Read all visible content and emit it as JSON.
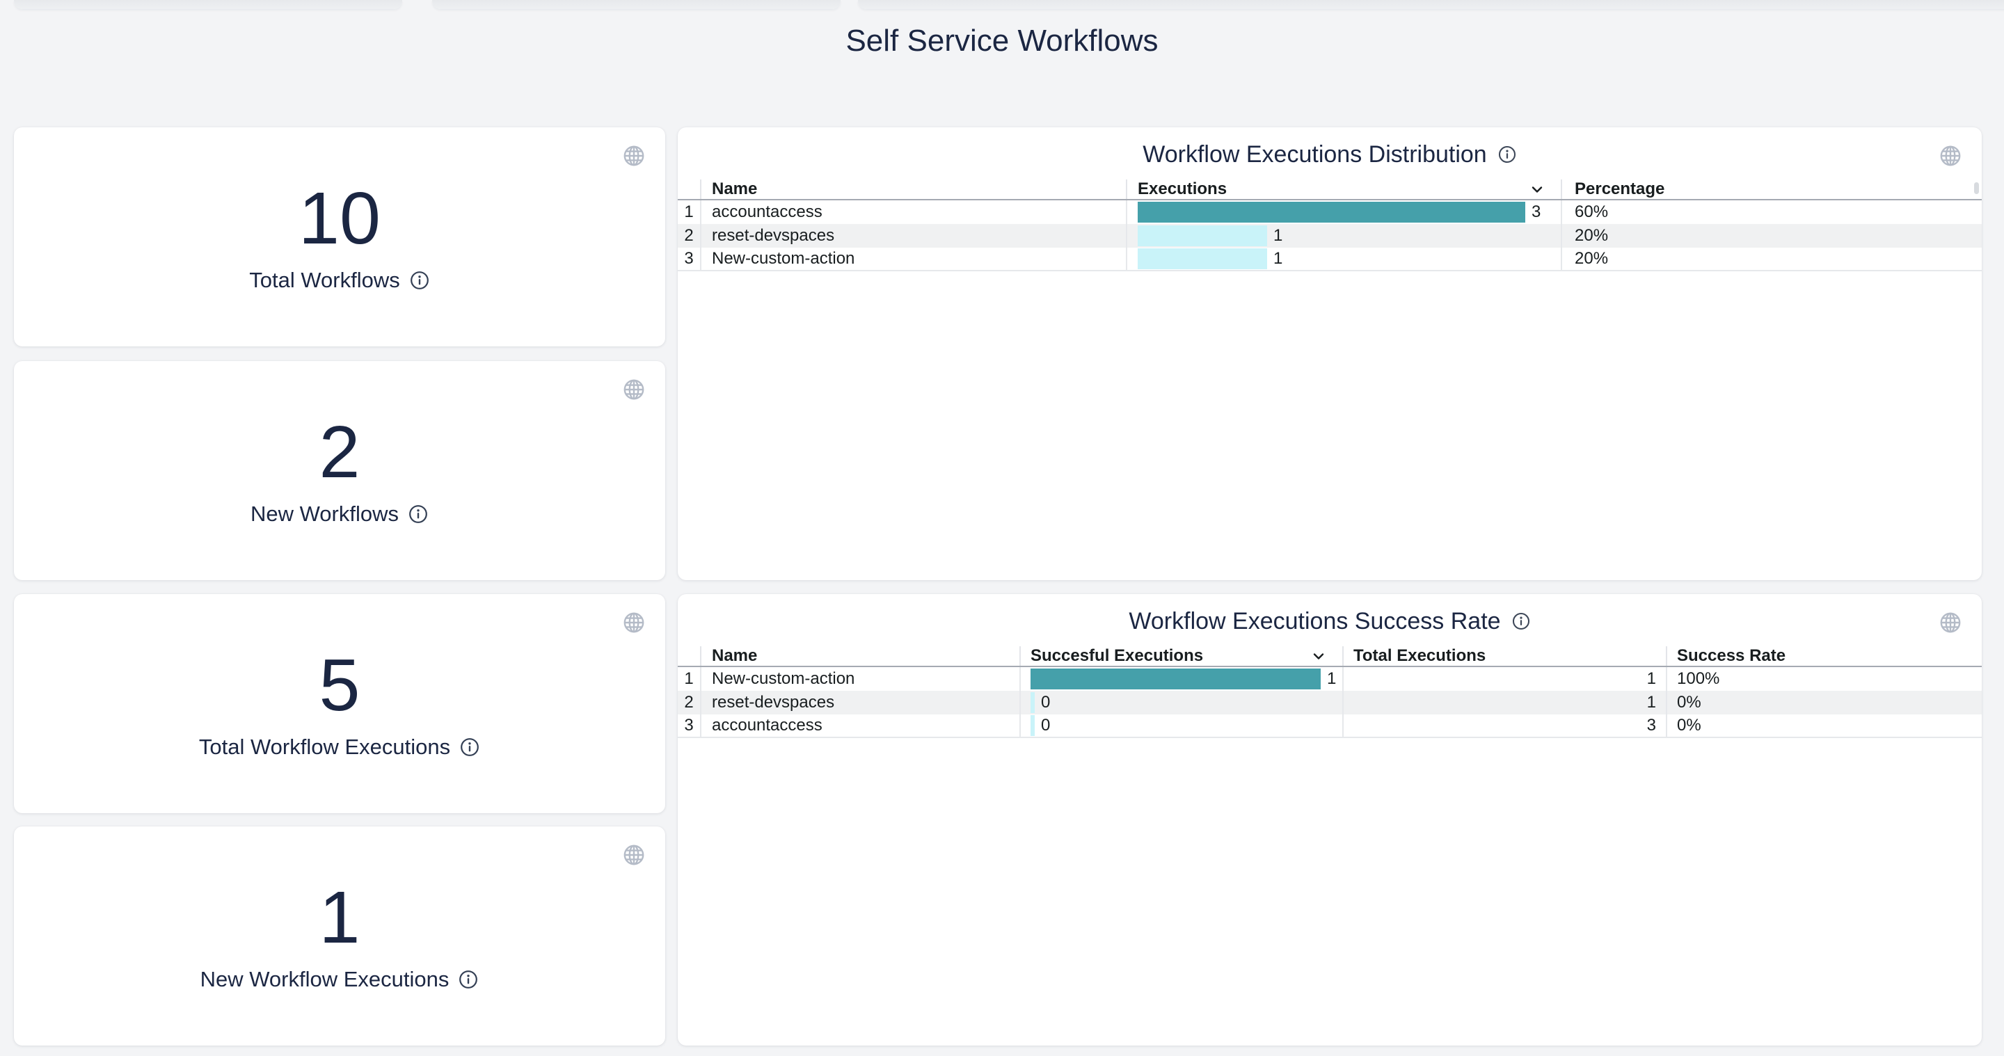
{
  "page": {
    "title": "Self Service Workflows"
  },
  "stat_cards": [
    {
      "value": "10",
      "label": "Total Workflows"
    },
    {
      "value": "2",
      "label": "New Workflows"
    },
    {
      "value": "5",
      "label": "Total Workflow Executions"
    },
    {
      "value": "1",
      "label": "New Workflow Executions"
    }
  ],
  "tables": [
    {
      "title": "Workflow Executions Distribution",
      "columns": {
        "name": "Name",
        "executions": "Executions",
        "percentage": "Percentage"
      },
      "sorted_by": "Executions",
      "max_value": 3,
      "rows": [
        {
          "index": "1",
          "name": "accountaccess",
          "executions": 3,
          "percentage": "60%"
        },
        {
          "index": "2",
          "name": "reset-devspaces",
          "executions": 1,
          "percentage": "20%"
        },
        {
          "index": "3",
          "name": "New-custom-action",
          "executions": 1,
          "percentage": "20%"
        }
      ]
    },
    {
      "title": "Workflow Executions Success Rate",
      "columns": {
        "name": "Name",
        "successful": "Succesful Executions",
        "total": "Total Executions",
        "rate": "Success Rate"
      },
      "sorted_by": "Succesful Executions",
      "max_value": 1,
      "rows": [
        {
          "index": "1",
          "name": "New-custom-action",
          "successful": 1,
          "total": "1",
          "rate": "100%"
        },
        {
          "index": "2",
          "name": "reset-devspaces",
          "successful": 0,
          "total": "1",
          "rate": "0%"
        },
        {
          "index": "3",
          "name": "accountaccess",
          "successful": 0,
          "total": "3",
          "rate": "0%"
        }
      ]
    }
  ],
  "colors": {
    "bar_primary": "#45a0aa",
    "bar_secondary": "#c9f3f9",
    "heading_text": "#1b2642",
    "page_background": "#f3f4f6",
    "row_stripe": "#f0f1f2"
  },
  "chart_data": [
    {
      "type": "bar",
      "title": "Workflow Executions Distribution",
      "categories": [
        "accountaccess",
        "reset-devspaces",
        "New-custom-action"
      ],
      "values": [
        3,
        1,
        1
      ],
      "percentages": [
        "60%",
        "20%",
        "20%"
      ],
      "xlabel": "Executions",
      "ylabel": "Name",
      "xlim": [
        0,
        3
      ],
      "orientation": "horizontal"
    },
    {
      "type": "bar",
      "title": "Workflow Executions Success Rate",
      "categories": [
        "New-custom-action",
        "reset-devspaces",
        "accountaccess"
      ],
      "values": [
        1,
        0,
        0
      ],
      "total_executions": [
        1,
        1,
        3
      ],
      "success_rates": [
        "100%",
        "0%",
        "0%"
      ],
      "xlabel": "Succesful Executions",
      "ylabel": "Name",
      "xlim": [
        0,
        1
      ],
      "orientation": "horizontal"
    }
  ]
}
